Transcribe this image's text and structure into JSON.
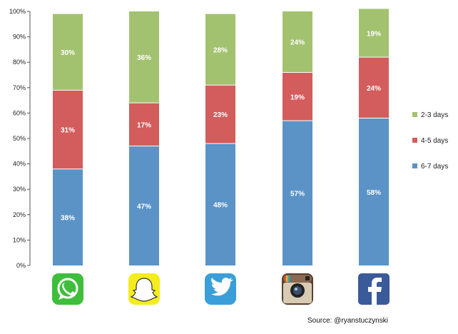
{
  "chart_data": {
    "type": "bar",
    "stacked": true,
    "orientation": "vertical",
    "categories": [
      "WhatsApp",
      "Snapchat",
      "Twitter",
      "Instagram",
      "Facebook"
    ],
    "category_icons": [
      "whatsapp-icon",
      "snapchat-icon",
      "twitter-icon",
      "instagram-icon",
      "facebook-icon"
    ],
    "series": [
      {
        "name": "6-7 days",
        "color": "#5b93c6",
        "values": [
          38,
          47,
          48,
          57,
          58
        ],
        "labels": [
          "38%",
          "47%",
          "48%",
          "57%",
          "58%"
        ]
      },
      {
        "name": "4-5 days",
        "color": "#d35c5c",
        "values": [
          31,
          17,
          23,
          19,
          24
        ],
        "labels": [
          "31%",
          "17%",
          "23%",
          "19%",
          "24%"
        ]
      },
      {
        "name": "2-3 days",
        "color": "#a3c270",
        "values": [
          30,
          36,
          28,
          24,
          19
        ],
        "labels": [
          "30%",
          "36%",
          "28%",
          "24%",
          "19%"
        ]
      }
    ],
    "ylim": [
      0,
      100
    ],
    "yticks": [
      "0%",
      "10%",
      "20%",
      "30%",
      "40%",
      "50%",
      "60%",
      "70%",
      "80%",
      "90%",
      "100%"
    ],
    "legend": {
      "position": "right",
      "items": [
        {
          "label": "2-3 days",
          "color": "#a3c270"
        },
        {
          "label": "4-5 days",
          "color": "#d35c5c"
        },
        {
          "label": "6-7 days",
          "color": "#5b93c6"
        }
      ]
    },
    "grid": false
  },
  "source_text": "Source: @ryanstuczynski"
}
